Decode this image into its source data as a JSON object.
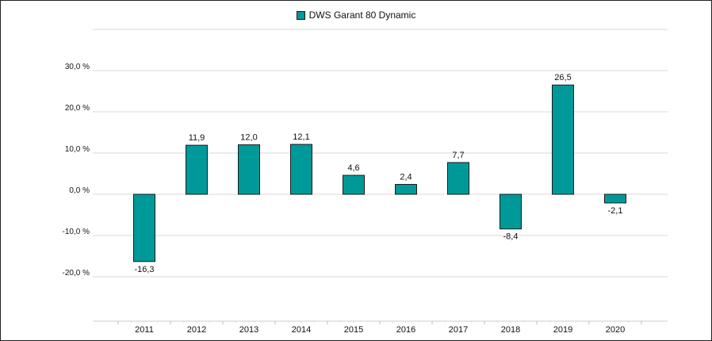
{
  "chart_data": {
    "type": "bar",
    "title": "",
    "xlabel": "",
    "ylabel": "",
    "categories": [
      "2011",
      "2012",
      "2013",
      "2014",
      "2015",
      "2016",
      "2017",
      "2018",
      "2019",
      "2020"
    ],
    "series": [
      {
        "name": "DWS Garant 80 Dynamic",
        "values": [
          -16.3,
          11.9,
          12.0,
          12.1,
          4.6,
          2.4,
          7.7,
          -8.4,
          26.5,
          -2.1
        ],
        "value_labels": [
          "-16,3",
          "11,9",
          "12,0",
          "12,1",
          "4,6",
          "2,4",
          "7,7",
          "-8,4",
          "26,5",
          "-2,1"
        ]
      }
    ],
    "ylim": [
      -30,
      40
    ],
    "yticks": [
      -20,
      -10,
      0,
      10,
      20,
      30
    ],
    "ytick_labels": [
      "-20,0 %",
      "-10,0 %",
      "0,0 %",
      "10,0 %",
      "20,0 %",
      "30,0 %"
    ],
    "grid": true,
    "legend_position": "top-center",
    "colors": {
      "bar_fill": "#009999",
      "bar_stroke": "#1a1a1a",
      "grid": "#d9d9d9"
    }
  }
}
